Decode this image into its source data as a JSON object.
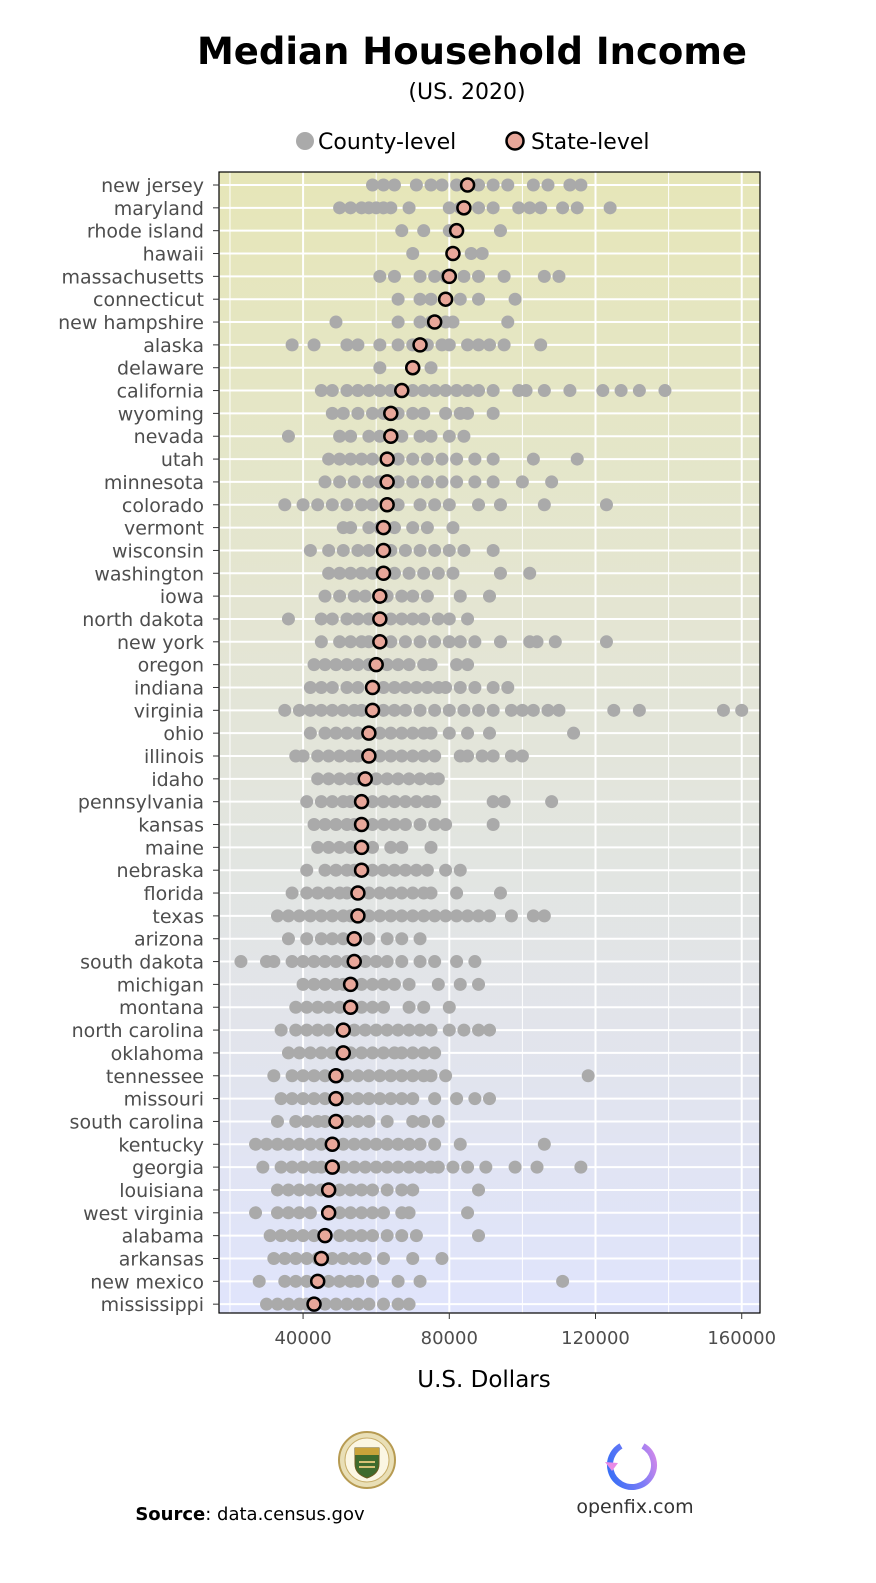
{
  "chart_data": {
    "type": "scatter",
    "title": "Median Household Income",
    "subtitle": "(US. 2020)",
    "xlabel": "U.S. Dollars",
    "ylabel": "",
    "xlim": [
      17000,
      165000
    ],
    "xticks": [
      40000,
      80000,
      120000,
      160000
    ],
    "xtick_labels": [
      "40000",
      "80000",
      "120000",
      "160000"
    ],
    "grid": true,
    "legend_position": "top",
    "legend": [
      {
        "key": "county",
        "label": "County-level",
        "color": "#aaaaaa"
      },
      {
        "key": "state",
        "label": "State-level",
        "color": "#e8a79a"
      }
    ],
    "states": [
      {
        "name": "new jersey",
        "state": 85000,
        "counties": [
          59000,
          62000,
          65000,
          71000,
          75000,
          78000,
          82000,
          88000,
          92000,
          96000,
          103000,
          107000,
          113000,
          116000
        ]
      },
      {
        "name": "maryland",
        "state": 84000,
        "counties": [
          50000,
          53000,
          56000,
          58000,
          60000,
          62000,
          64000,
          69000,
          80000,
          83000,
          88000,
          92000,
          99000,
          102000,
          105000,
          111000,
          115000,
          124000
        ]
      },
      {
        "name": "rhode island",
        "state": 82000,
        "counties": [
          67000,
          73000,
          80000,
          94000
        ]
      },
      {
        "name": "hawaii",
        "state": 81000,
        "counties": [
          70000,
          86000,
          89000
        ]
      },
      {
        "name": "massachusetts",
        "state": 80000,
        "counties": [
          61000,
          65000,
          72000,
          76000,
          79000,
          84000,
          88000,
          95000,
          106000,
          110000
        ]
      },
      {
        "name": "connecticut",
        "state": 79000,
        "counties": [
          66000,
          72000,
          75000,
          83000,
          88000,
          98000
        ]
      },
      {
        "name": "new hampshire",
        "state": 76000,
        "counties": [
          49000,
          66000,
          72000,
          75000,
          79000,
          81000,
          96000
        ]
      },
      {
        "name": "alaska",
        "state": 72000,
        "counties": [
          37000,
          43000,
          52000,
          55000,
          61000,
          66000,
          70000,
          74000,
          78000,
          80000,
          85000,
          88000,
          91000,
          95000,
          105000
        ]
      },
      {
        "name": "delaware",
        "state": 70000,
        "counties": [
          61000,
          75000
        ]
      },
      {
        "name": "california",
        "state": 67000,
        "counties": [
          45000,
          48000,
          52000,
          55000,
          58000,
          61000,
          64000,
          70000,
          73000,
          76000,
          79000,
          82000,
          85000,
          88000,
          92000,
          99000,
          101000,
          106000,
          113000,
          122000,
          127000,
          132000,
          139000
        ]
      },
      {
        "name": "wyoming",
        "state": 64000,
        "counties": [
          48000,
          51000,
          55000,
          59000,
          62000,
          66000,
          70000,
          73000,
          79000,
          83000,
          85000,
          92000
        ]
      },
      {
        "name": "nevada",
        "state": 64000,
        "counties": [
          36000,
          50000,
          53000,
          58000,
          61000,
          67000,
          72000,
          75000,
          80000,
          84000
        ]
      },
      {
        "name": "utah",
        "state": 63000,
        "counties": [
          47000,
          50000,
          53000,
          56000,
          59000,
          66000,
          70000,
          74000,
          78000,
          82000,
          87000,
          92000,
          103000,
          115000
        ]
      },
      {
        "name": "minnesota",
        "state": 63000,
        "counties": [
          46000,
          50000,
          54000,
          58000,
          61000,
          66000,
          70000,
          74000,
          78000,
          82000,
          87000,
          92000,
          100000,
          108000
        ]
      },
      {
        "name": "colorado",
        "state": 63000,
        "counties": [
          35000,
          40000,
          44000,
          48000,
          52000,
          56000,
          59000,
          66000,
          72000,
          76000,
          80000,
          88000,
          94000,
          106000,
          123000
        ]
      },
      {
        "name": "vermont",
        "state": 62000,
        "counties": [
          51000,
          53000,
          58000,
          61000,
          65000,
          70000,
          74000,
          81000
        ]
      },
      {
        "name": "wisconsin",
        "state": 62000,
        "counties": [
          42000,
          47000,
          51000,
          55000,
          58000,
          64000,
          68000,
          72000,
          76000,
          80000,
          84000,
          92000
        ]
      },
      {
        "name": "washington",
        "state": 62000,
        "counties": [
          47000,
          50000,
          53000,
          56000,
          59000,
          65000,
          69000,
          73000,
          77000,
          81000,
          94000,
          102000
        ]
      },
      {
        "name": "iowa",
        "state": 61000,
        "counties": [
          46000,
          50000,
          54000,
          57000,
          63000,
          67000,
          70000,
          74000,
          83000,
          91000
        ]
      },
      {
        "name": "north dakota",
        "state": 61000,
        "counties": [
          36000,
          45000,
          48000,
          52000,
          55000,
          58000,
          64000,
          67000,
          70000,
          73000,
          77000,
          80000,
          85000
        ]
      },
      {
        "name": "new york",
        "state": 61000,
        "counties": [
          45000,
          50000,
          53000,
          56000,
          58000,
          64000,
          68000,
          72000,
          76000,
          80000,
          83000,
          87000,
          94000,
          102000,
          104000,
          109000,
          123000
        ]
      },
      {
        "name": "oregon",
        "state": 60000,
        "counties": [
          43000,
          46000,
          49000,
          52000,
          55000,
          58000,
          63000,
          66000,
          69000,
          73000,
          75000,
          82000,
          85000
        ]
      },
      {
        "name": "indiana",
        "state": 59000,
        "counties": [
          42000,
          45000,
          48000,
          52000,
          55000,
          62000,
          65000,
          68000,
          71000,
          74000,
          77000,
          79000,
          83000,
          87000,
          92000,
          96000
        ]
      },
      {
        "name": "virginia",
        "state": 59000,
        "counties": [
          35000,
          39000,
          42000,
          45000,
          48000,
          51000,
          54000,
          56000,
          62000,
          65000,
          68000,
          72000,
          76000,
          80000,
          84000,
          88000,
          92000,
          97000,
          100000,
          103000,
          107000,
          110000,
          125000,
          132000,
          155000,
          160000
        ]
      },
      {
        "name": "ohio",
        "state": 58000,
        "counties": [
          42000,
          46000,
          49000,
          52000,
          55000,
          61000,
          64000,
          67000,
          70000,
          73000,
          75000,
          80000,
          85000,
          91000,
          114000
        ]
      },
      {
        "name": "illinois",
        "state": 58000,
        "counties": [
          38000,
          40000,
          44000,
          47000,
          50000,
          53000,
          55000,
          61000,
          64000,
          67000,
          70000,
          73000,
          76000,
          83000,
          85000,
          89000,
          92000,
          97000,
          100000
        ]
      },
      {
        "name": "idaho",
        "state": 57000,
        "counties": [
          44000,
          47000,
          50000,
          53000,
          55000,
          60000,
          63000,
          66000,
          69000,
          72000,
          75000,
          77000
        ]
      },
      {
        "name": "pennsylvania",
        "state": 56000,
        "counties": [
          41000,
          45000,
          48000,
          51000,
          53000,
          59000,
          62000,
          65000,
          68000,
          71000,
          74000,
          76000,
          92000,
          95000,
          108000
        ]
      },
      {
        "name": "kansas",
        "state": 56000,
        "counties": [
          43000,
          46000,
          49000,
          52000,
          54000,
          59000,
          62000,
          65000,
          68000,
          72000,
          76000,
          79000,
          92000
        ]
      },
      {
        "name": "maine",
        "state": 56000,
        "counties": [
          44000,
          47000,
          50000,
          53000,
          59000,
          64000,
          67000,
          75000
        ]
      },
      {
        "name": "nebraska",
        "state": 56000,
        "counties": [
          41000,
          46000,
          49000,
          52000,
          54000,
          59000,
          62000,
          65000,
          68000,
          71000,
          74000,
          79000,
          83000
        ]
      },
      {
        "name": "florida",
        "state": 55000,
        "counties": [
          37000,
          41000,
          44000,
          47000,
          50000,
          52000,
          58000,
          61000,
          64000,
          67000,
          70000,
          73000,
          75000,
          82000,
          94000
        ]
      },
      {
        "name": "texas",
        "state": 55000,
        "counties": [
          33000,
          36000,
          39000,
          42000,
          45000,
          48000,
          51000,
          53000,
          58000,
          61000,
          64000,
          67000,
          70000,
          73000,
          76000,
          79000,
          82000,
          85000,
          88000,
          91000,
          97000,
          103000,
          106000
        ]
      },
      {
        "name": "arizona",
        "state": 54000,
        "counties": [
          36000,
          41000,
          45000,
          48000,
          51000,
          58000,
          63000,
          67000,
          72000
        ]
      },
      {
        "name": "south dakota",
        "state": 54000,
        "counties": [
          23000,
          30000,
          32000,
          37000,
          40000,
          43000,
          46000,
          49000,
          52000,
          57000,
          60000,
          63000,
          67000,
          72000,
          76000,
          82000,
          87000
        ]
      },
      {
        "name": "michigan",
        "state": 53000,
        "counties": [
          40000,
          43000,
          46000,
          49000,
          51000,
          56000,
          59000,
          62000,
          65000,
          69000,
          77000,
          83000,
          88000
        ]
      },
      {
        "name": "montana",
        "state": 53000,
        "counties": [
          38000,
          41000,
          44000,
          47000,
          50000,
          56000,
          59000,
          62000,
          69000,
          73000,
          80000
        ]
      },
      {
        "name": "north carolina",
        "state": 51000,
        "counties": [
          34000,
          38000,
          41000,
          44000,
          47000,
          54000,
          57000,
          60000,
          63000,
          66000,
          69000,
          72000,
          75000,
          80000,
          84000,
          88000,
          91000
        ]
      },
      {
        "name": "oklahoma",
        "state": 51000,
        "counties": [
          36000,
          39000,
          42000,
          45000,
          48000,
          53000,
          56000,
          59000,
          62000,
          65000,
          67000,
          70000,
          73000,
          76000
        ]
      },
      {
        "name": "tennessee",
        "state": 49000,
        "counties": [
          32000,
          37000,
          40000,
          43000,
          46000,
          52000,
          55000,
          58000,
          61000,
          64000,
          67000,
          70000,
          73000,
          75000,
          79000,
          118000
        ]
      },
      {
        "name": "missouri",
        "state": 49000,
        "counties": [
          34000,
          37000,
          40000,
          43000,
          46000,
          52000,
          55000,
          58000,
          61000,
          64000,
          67000,
          70000,
          76000,
          82000,
          87000,
          91000
        ]
      },
      {
        "name": "south carolina",
        "state": 49000,
        "counties": [
          33000,
          38000,
          41000,
          44000,
          46000,
          52000,
          55000,
          58000,
          63000,
          70000,
          73000,
          77000
        ]
      },
      {
        "name": "kentucky",
        "state": 48000,
        "counties": [
          27000,
          30000,
          33000,
          36000,
          39000,
          42000,
          45000,
          51000,
          54000,
          57000,
          60000,
          63000,
          66000,
          69000,
          72000,
          76000,
          83000,
          106000
        ]
      },
      {
        "name": "georgia",
        "state": 48000,
        "counties": [
          29000,
          34000,
          37000,
          40000,
          43000,
          45000,
          51000,
          54000,
          57000,
          60000,
          63000,
          66000,
          69000,
          72000,
          75000,
          77000,
          81000,
          85000,
          90000,
          98000,
          104000,
          116000
        ]
      },
      {
        "name": "louisiana",
        "state": 47000,
        "counties": [
          33000,
          36000,
          39000,
          42000,
          45000,
          50000,
          53000,
          56000,
          59000,
          63000,
          67000,
          70000,
          88000
        ]
      },
      {
        "name": "west virginia",
        "state": 47000,
        "counties": [
          27000,
          33000,
          36000,
          39000,
          42000,
          50000,
          53000,
          56000,
          59000,
          62000,
          67000,
          69000,
          85000
        ]
      },
      {
        "name": "alabama",
        "state": 46000,
        "counties": [
          31000,
          34000,
          37000,
          40000,
          43000,
          50000,
          53000,
          56000,
          59000,
          63000,
          67000,
          71000,
          88000
        ]
      },
      {
        "name": "arkansas",
        "state": 45000,
        "counties": [
          32000,
          35000,
          38000,
          41000,
          44000,
          48000,
          51000,
          54000,
          57000,
          62000,
          70000,
          78000
        ]
      },
      {
        "name": "new mexico",
        "state": 44000,
        "counties": [
          28000,
          35000,
          38000,
          41000,
          47000,
          50000,
          53000,
          55000,
          59000,
          66000,
          72000,
          111000
        ]
      },
      {
        "name": "mississippi",
        "state": 43000,
        "counties": [
          30000,
          33000,
          36000,
          39000,
          41000,
          46000,
          49000,
          52000,
          55000,
          58000,
          62000,
          66000,
          69000
        ]
      }
    ]
  },
  "footer": {
    "source_label": "Source",
    "source_text": ": data.census.gov",
    "brand": "openfix.com",
    "seal_icon": "census-bureau-seal-icon",
    "brand_icon": "openfix-logo-icon"
  }
}
